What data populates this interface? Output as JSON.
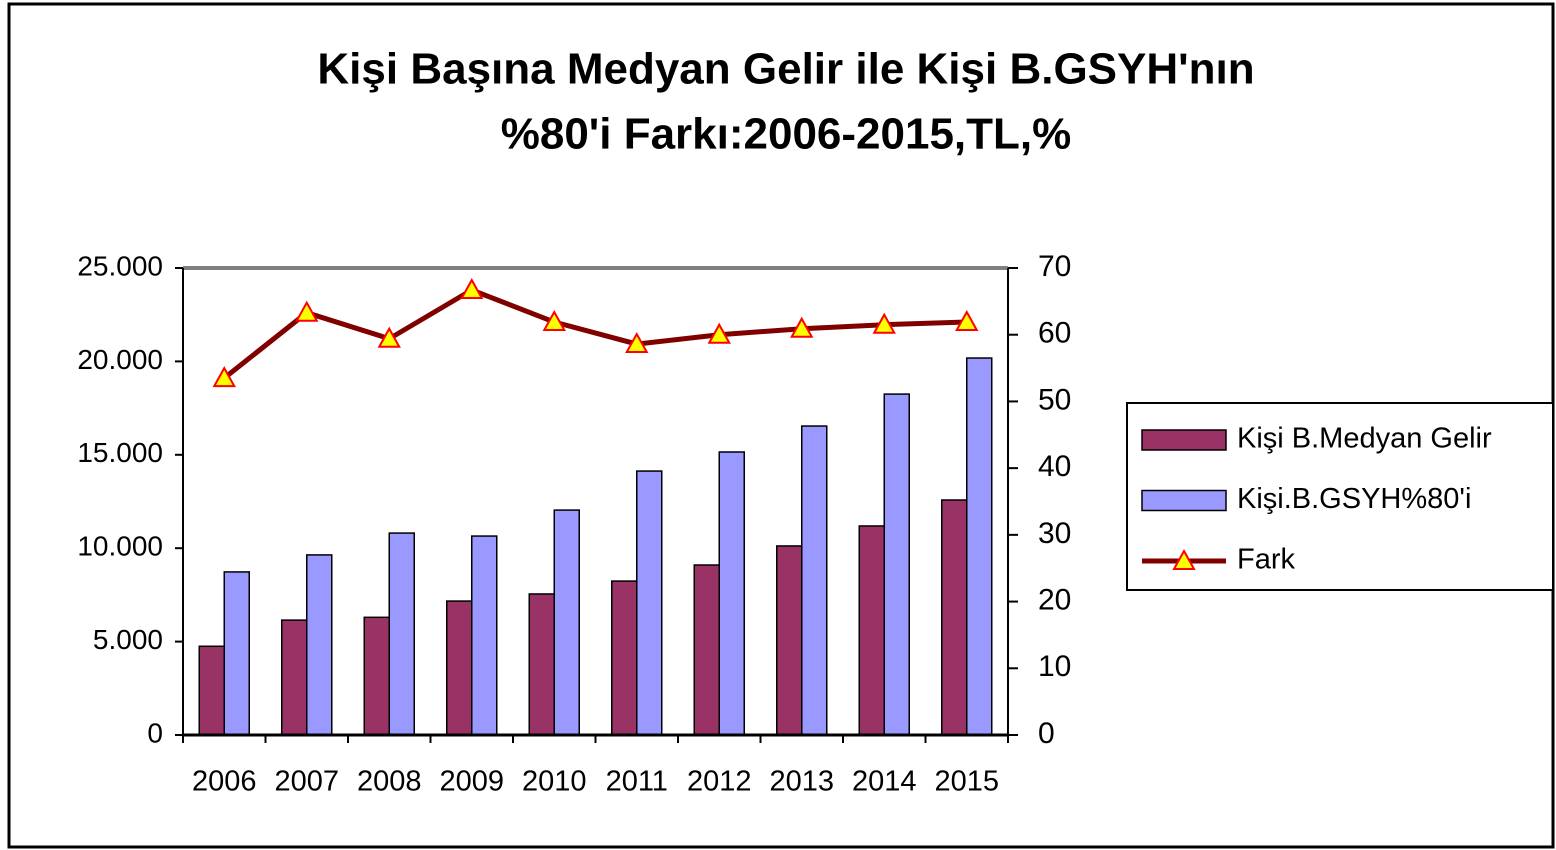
{
  "chart_data": {
    "type": "bar",
    "title": [
      "Kişi Başına Medyan Gelir ile Kişi B.GSYH'nın",
      "%80'i Farkı:2006-2015,TL,%"
    ],
    "categories": [
      "2006",
      "2007",
      "2008",
      "2009",
      "2010",
      "2011",
      "2012",
      "2013",
      "2014",
      "2015"
    ],
    "series": [
      {
        "name": "Kişi B.Medyan Gelir",
        "color": "#993366",
        "type": "bar",
        "values": [
          4750,
          6150,
          6300,
          7170,
          7550,
          8240,
          9100,
          10120,
          11190,
          12580
        ]
      },
      {
        "name": "Kişi.B.GSYH%80'i",
        "color": "#9999ff",
        "type": "bar",
        "values": [
          8730,
          9640,
          10810,
          10650,
          12040,
          14130,
          15150,
          16540,
          18250,
          20180
        ]
      },
      {
        "name": "Fark",
        "color": "#800000",
        "marker_color": "#ffff00",
        "type": "line",
        "axis": "y2",
        "values": [
          53.5,
          63.3,
          59.4,
          66.7,
          61.9,
          58.6,
          60.0,
          60.9,
          61.5,
          61.9
        ]
      }
    ],
    "ylim": [
      0,
      25000
    ],
    "yticks": [
      0,
      {
        "value": 5000,
        "label": "5.000"
      },
      {
        "value": 10000,
        "label": "10.000"
      },
      {
        "value": 15000,
        "label": "15.000"
      },
      {
        "value": 20000,
        "label": "20.000"
      },
      {
        "value": 25000,
        "label": "25.000"
      }
    ],
    "y2lim": [
      0,
      70
    ],
    "y2ticks": [
      0,
      10,
      20,
      30,
      40,
      50,
      60,
      70
    ],
    "legend": "right"
  }
}
